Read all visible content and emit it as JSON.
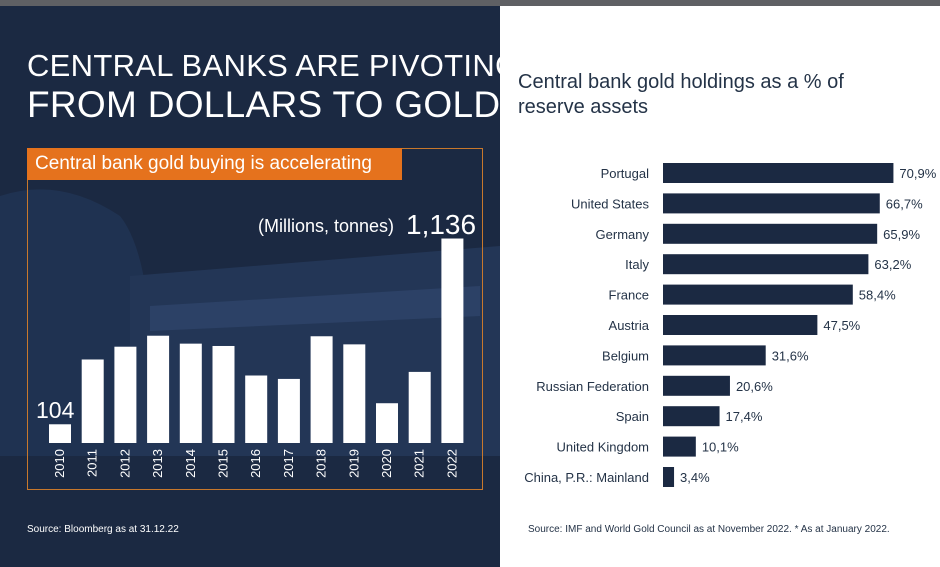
{
  "left_panel": {
    "headline_line1": "CENTRAL BANKS ARE PIVOTING",
    "headline_line2": "FROM DOLLARS TO GOLD",
    "subtitle": "Central bank gold buying is accelerating",
    "source": "Source: Bloomberg as at 31.12.22"
  },
  "right_panel": {
    "title": "Central bank gold holdings as a % of reserve assets",
    "source": "Source: IMF and World Gold Council as at November 2022. * As at January 2022."
  },
  "colors": {
    "navy": "#1b2942",
    "orange": "#e5721d",
    "bar_white": "#ffffff",
    "bar_navy": "#1b2942"
  },
  "chart_data": [
    {
      "type": "bar",
      "title": "Central bank gold buying is accelerating",
      "unit_note": "(Millions, tonnes)",
      "categories": [
        "2010",
        "2011",
        "2012",
        "2013",
        "2014",
        "2015",
        "2016",
        "2017",
        "2018",
        "2019",
        "2020",
        "2021",
        "2022"
      ],
      "values": [
        104,
        464,
        535,
        596,
        552,
        539,
        375,
        356,
        593,
        548,
        221,
        395,
        1136
      ],
      "data_labels": {
        "first": "104",
        "last": "1,136"
      },
      "ylim": [
        0,
        1250
      ],
      "xlabel": "",
      "ylabel": ""
    },
    {
      "type": "bar",
      "orientation": "horizontal",
      "title": "Central bank gold holdings as a % of reserve assets",
      "categories": [
        "Portugal",
        "United States",
        "Germany",
        "Italy",
        "France",
        "Austria",
        "Belgium",
        "Russian Federation",
        "Spain",
        "United Kingdom",
        "China, P.R.: Mainland"
      ],
      "values": [
        70.9,
        66.7,
        65.9,
        63.2,
        58.4,
        47.5,
        31.6,
        20.6,
        17.4,
        10.1,
        3.4
      ],
      "labels": [
        "70,9%",
        "66,7%",
        "65,9%",
        "63,2%",
        "58,4%",
        "47,5%",
        "31,6%",
        "20,6%",
        "17,4%",
        "10,1%",
        "3,4%"
      ],
      "xlim": [
        0,
        80
      ]
    }
  ]
}
